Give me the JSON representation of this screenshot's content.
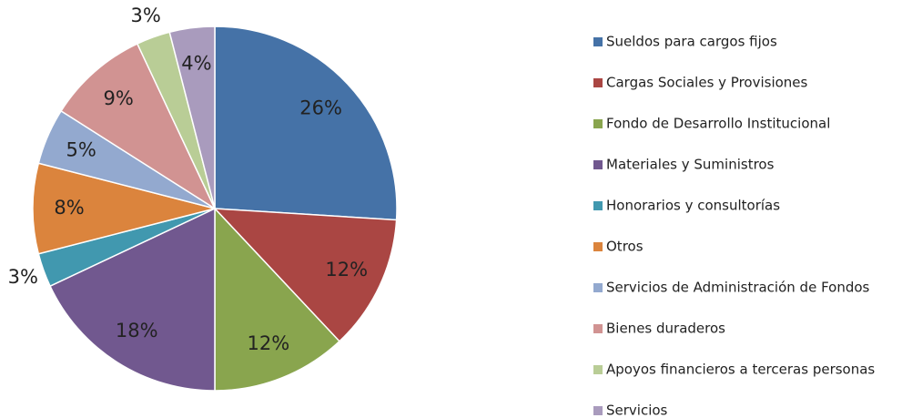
{
  "chart_data": {
    "type": "pie",
    "categories": [
      "Sueldos para cargos fijos",
      "Cargas Sociales y Provisiones",
      "Fondo de Desarrollo Institucional",
      "Materiales y Suministros",
      "Honorarios y consultorías",
      "Otros",
      "Servicios de Administración de Fondos",
      "Bienes duraderos",
      "Apoyos financieros a terceras personas",
      "Servicios"
    ],
    "values": [
      26,
      12,
      12,
      18,
      3,
      8,
      5,
      9,
      3,
      4
    ],
    "value_labels": [
      "26%",
      "12%",
      "12%",
      "18%",
      "3%",
      "8%",
      "5%",
      "9%",
      "3%",
      "4%"
    ],
    "colors": [
      "#4572a7",
      "#aa4643",
      "#89a54e",
      "#71588f",
      "#4198af",
      "#db843d",
      "#93a9cf",
      "#d19392",
      "#b9cd96",
      "#a99bbd"
    ],
    "legend": "right"
  }
}
